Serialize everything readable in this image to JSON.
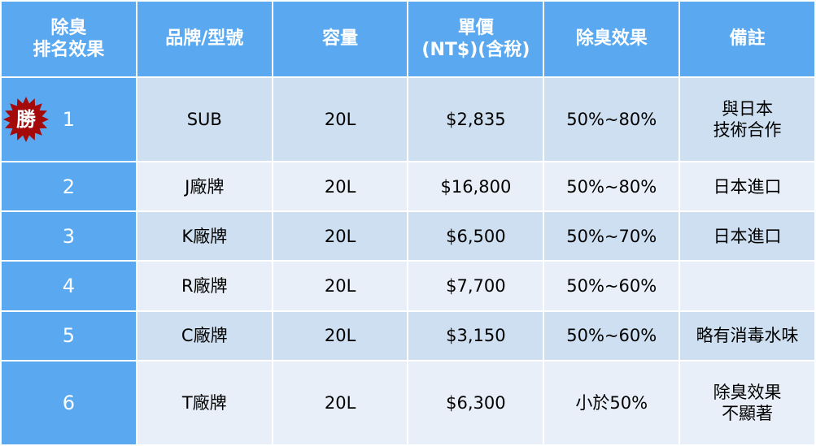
{
  "headers": [
    "除臭\n排名效果",
    "品牌/型號",
    "容量",
    "單價\n(NT$)(含稅)",
    "除臭效果",
    "備註"
  ],
  "badge": {
    "text": "勝",
    "color": "#a50a0a"
  },
  "rows": [
    {
      "rank": "1",
      "brand": "SUB",
      "capacity": "20L",
      "price": "$2,835",
      "effect": "50%~80%",
      "note": "與日本\n技術合作"
    },
    {
      "rank": "2",
      "brand": "J廠牌",
      "capacity": "20L",
      "price": "$16,800",
      "effect": "50%~80%",
      "note": "日本進口"
    },
    {
      "rank": "3",
      "brand": "K廠牌",
      "capacity": "20L",
      "price": "$6,500",
      "effect": "50%~70%",
      "note": "日本進口"
    },
    {
      "rank": "4",
      "brand": "R廠牌",
      "capacity": "20L",
      "price": "$7,700",
      "effect": "50%~60%",
      "note": ""
    },
    {
      "rank": "5",
      "brand": "C廠牌",
      "capacity": "20L",
      "price": "$3,150",
      "effect": "50%~60%",
      "note": "略有消毒水味"
    },
    {
      "rank": "6",
      "brand": "T廠牌",
      "capacity": "20L",
      "price": "$6,300",
      "effect": "小於50%",
      "note": "除臭效果\n不顯著"
    }
  ]
}
